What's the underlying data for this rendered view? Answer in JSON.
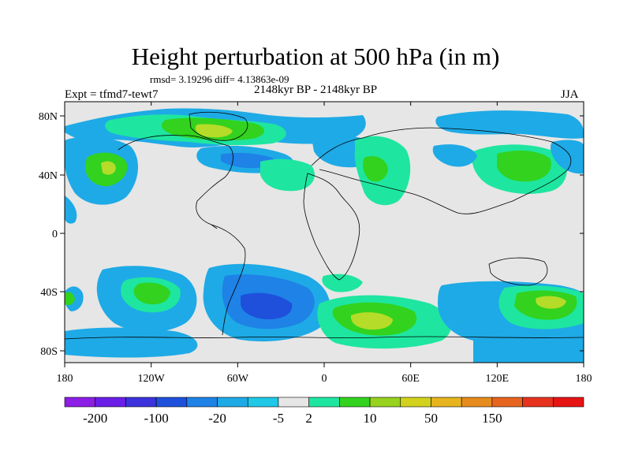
{
  "title": "Height perturbation at 500 hPa (in m)",
  "stats": "rmsd= 3.19296 diff= 4.13863e-09",
  "expt": "Expt = tfmd7-tewt7",
  "period": "2148kyr BP - 2148kyr BP",
  "season": "JJA",
  "lat_ticks": [
    "80N",
    "40N",
    "0",
    "40S",
    "80S"
  ],
  "lon_ticks": [
    "180",
    "120W",
    "60W",
    "0",
    "60E",
    "120E",
    "180"
  ],
  "colorbar": {
    "colors": [
      "#8c1ee6",
      "#6a1ee6",
      "#3c32dc",
      "#1e50dc",
      "#1e82e6",
      "#1eaae6",
      "#1ec8e6",
      "#e6e6e6",
      "#1ee6a0",
      "#32d21e",
      "#96d21e",
      "#d2d21e",
      "#e6b41e",
      "#e68c1e",
      "#e6641e",
      "#e6321e",
      "#e61414"
    ],
    "labels": [
      {
        "text": "-200",
        "after_box": 1
      },
      {
        "text": "-100",
        "after_box": 3
      },
      {
        "text": "-20",
        "after_box": 5
      },
      {
        "text": "-5",
        "after_box": 7
      },
      {
        "text": "2",
        "after_box": 8
      },
      {
        "text": "10",
        "after_box": 10
      },
      {
        "text": "50",
        "after_box": 12
      },
      {
        "text": "150",
        "after_box": 14
      }
    ]
  },
  "field_colors": {
    "background": "#e6e6e6",
    "cyan": "#1eaae6",
    "blue": "#1e82e6",
    "dark_blue": "#1e50dc",
    "teal": "#1ee6a0",
    "green": "#32d21e",
    "yellow_green": "#b4dc28"
  }
}
